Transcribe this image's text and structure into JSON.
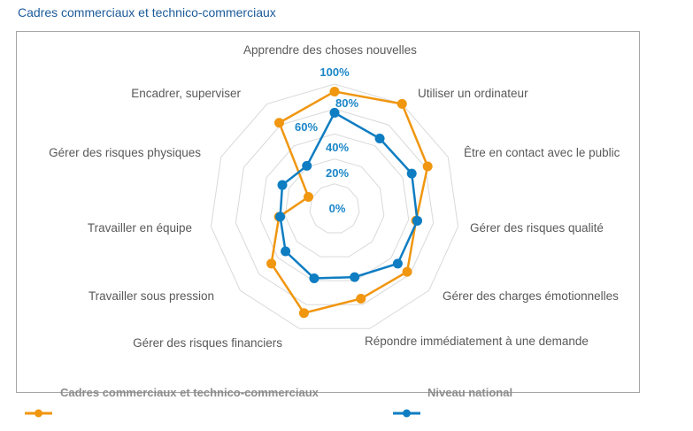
{
  "title": "Cadres commerciaux et technico-commerciaux",
  "chart_data": {
    "type": "radar",
    "title": "Cadres commerciaux et technico-commerciaux",
    "categories": [
      "Apprendre des choses nouvelles",
      "Utiliser un ordinateur",
      "Être en contact avec le public",
      "Gérer des risques qualité",
      "Gérer des charges émotionnelles",
      "Répondre immédiatement à une demande",
      "Gérer des risques financiers",
      "Travailler sous pression",
      "Travailler en équipe",
      "Gérer des risques physiques",
      "Encadrer, superviser"
    ],
    "radial_ticks": [
      "0%",
      "20%",
      "40%",
      "60%",
      "80%",
      "100%"
    ],
    "rlim": [
      0,
      100
    ],
    "series": [
      {
        "name": "Cadres commerciaux et technico-commerciaux",
        "color": "#f0960f",
        "values": [
          94,
          100,
          82,
          66,
          77,
          75,
          87,
          67,
          45,
          23,
          82
        ]
      },
      {
        "name": "Niveau national",
        "color": "#0e7dc2",
        "values": [
          77,
          67,
          68,
          67,
          67,
          57,
          58,
          52,
          44,
          46,
          41
        ]
      }
    ],
    "legend_position": "bottom"
  }
}
